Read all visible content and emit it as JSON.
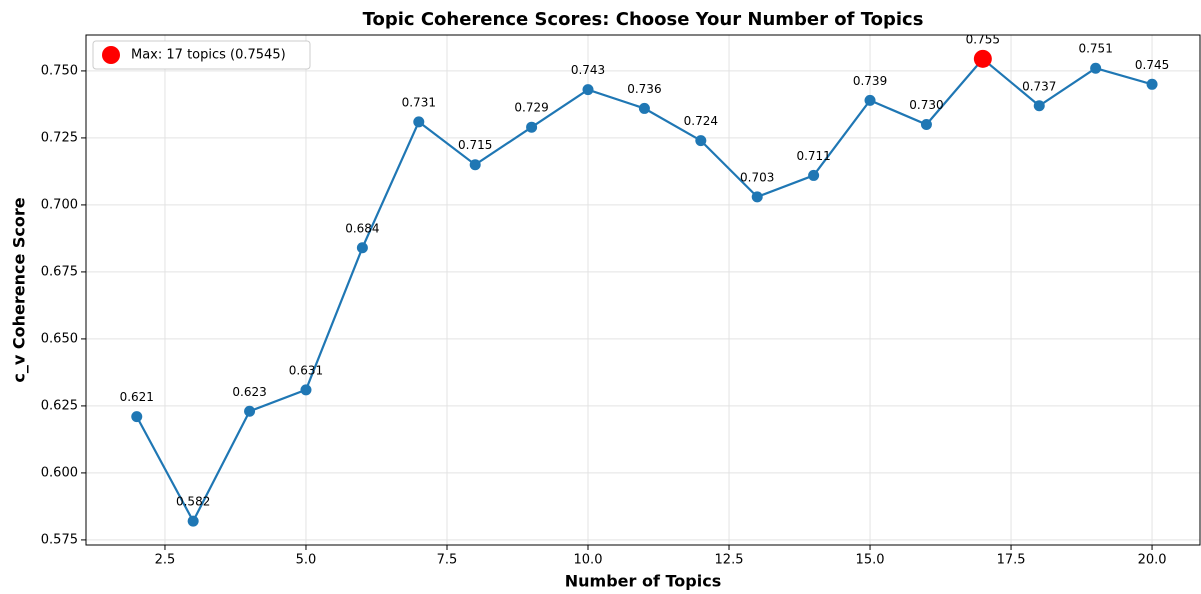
{
  "chart_data": {
    "type": "line",
    "title": "Topic Coherence Scores: Choose Your Number of Topics",
    "x_label": "Number of Topics",
    "y_label": "c_v Coherence Score",
    "x": [
      2,
      3,
      4,
      5,
      6,
      7,
      8,
      9,
      10,
      11,
      12,
      13,
      14,
      15,
      16,
      17,
      18,
      19,
      20
    ],
    "series": [
      {
        "color": "#1f77b4",
        "values": [
          0.621,
          0.582,
          0.623,
          0.631,
          0.684,
          0.731,
          0.715,
          0.729,
          0.743,
          0.736,
          0.724,
          0.703,
          0.711,
          0.739,
          0.73,
          0.7545,
          0.737,
          0.751,
          0.745
        ],
        "value_labels": [
          "0.621",
          "0.582",
          "0.623",
          "0.631",
          "0.684",
          "0.731",
          "0.715",
          "0.729",
          "0.743",
          "0.736",
          "0.724",
          "0.703",
          "0.711",
          "0.739",
          "0.730",
          "0.755",
          "0.737",
          "0.751",
          "0.745"
        ]
      }
    ],
    "max_point": {
      "name": "Max: 17 topics (0.7545)",
      "color": "#ff0000",
      "x": 17,
      "y": 0.7545
    },
    "legend": "upper left",
    "grid": true,
    "xlim": [
      1.1,
      20.85
    ],
    "ylim": [
      0.5731,
      0.7634
    ],
    "xticks": [
      {
        "value": 2.5,
        "label": "2.5"
      },
      {
        "value": 5,
        "label": "5.0"
      },
      {
        "value": 7.5,
        "label": "7.5"
      },
      {
        "value": 10,
        "label": "10.0"
      },
      {
        "value": 12.5,
        "label": "12.5"
      },
      {
        "value": 15,
        "label": "15.0"
      },
      {
        "value": 17.5,
        "label": "17.5"
      },
      {
        "value": 20,
        "label": "20.0"
      }
    ],
    "yticks": [
      {
        "value": 0.575,
        "label": "0.575"
      },
      {
        "value": 0.6,
        "label": "0.600"
      },
      {
        "value": 0.625,
        "label": "0.625"
      },
      {
        "value": 0.65,
        "label": "0.650"
      },
      {
        "value": 0.675,
        "label": "0.675"
      },
      {
        "value": 0.7,
        "label": "0.700"
      },
      {
        "value": 0.725,
        "label": "0.725"
      },
      {
        "value": 0.75,
        "label": "0.750"
      }
    ]
  }
}
